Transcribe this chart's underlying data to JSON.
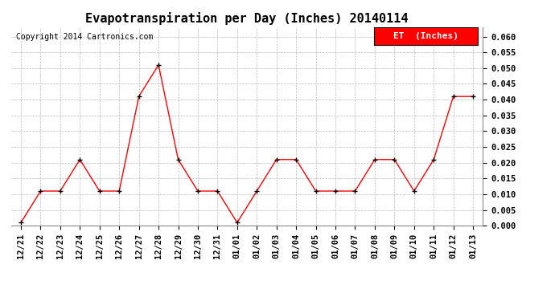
{
  "title": "Evapotranspiration per Day (Inches) 20140114",
  "copyright_text": "Copyright 2014 Cartronics.com",
  "legend_label": "ET  (Inches)",
  "legend_bg": "#ff0000",
  "legend_text_color": "#ffffff",
  "line_color": "#ff0000",
  "marker_color": "#000000",
  "bg_color": "#ffffff",
  "grid_color": "#bbbbbb",
  "x_labels": [
    "12/21",
    "12/22",
    "12/23",
    "12/24",
    "12/25",
    "12/26",
    "12/27",
    "12/28",
    "12/29",
    "12/30",
    "12/31",
    "01/01",
    "01/02",
    "01/03",
    "01/04",
    "01/05",
    "01/06",
    "01/07",
    "01/08",
    "01/09",
    "01/10",
    "01/11",
    "01/12",
    "01/13"
  ],
  "y_values": [
    0.001,
    0.011,
    0.011,
    0.021,
    0.011,
    0.011,
    0.041,
    0.051,
    0.021,
    0.011,
    0.011,
    0.001,
    0.011,
    0.021,
    0.021,
    0.011,
    0.011,
    0.011,
    0.021,
    0.021,
    0.011,
    0.021,
    0.041,
    0.041
  ],
  "ylim": [
    0.0,
    0.063
  ],
  "yticks": [
    0.0,
    0.005,
    0.01,
    0.015,
    0.02,
    0.025,
    0.03,
    0.035,
    0.04,
    0.045,
    0.05,
    0.055,
    0.06
  ],
  "title_fontsize": 11,
  "copyright_fontsize": 7,
  "tick_fontsize": 7.5,
  "legend_fontsize": 8
}
